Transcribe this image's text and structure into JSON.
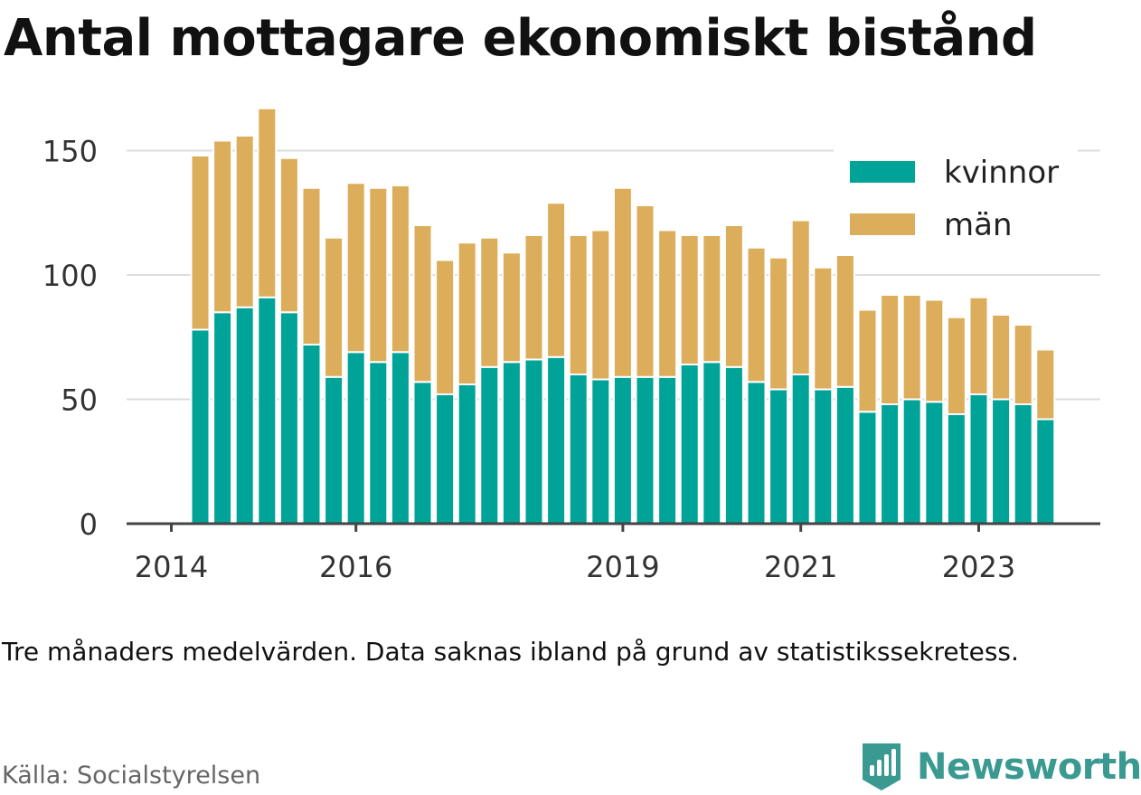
{
  "title": "Antal mottagare ekonomiskt bistånd",
  "note": "Tre månaders medelvärden. Data saknas ibland på grund av statistikssekretess.",
  "source": "Källa: Socialstyrelsen",
  "brand": {
    "name": "Newsworthy",
    "icon": "newsworthy-logo-icon",
    "color": "#3a9a91"
  },
  "colors": {
    "kvinnor": "#00a398",
    "man": "#dcae5c",
    "grid": "#dddddd",
    "axis": "#444444"
  },
  "chart_data": {
    "type": "bar",
    "stacked": true,
    "legend_position": "top-right",
    "grid": true,
    "ylim": [
      0,
      160
    ],
    "yticks": [
      0,
      50,
      100,
      150
    ],
    "xticks": [
      "2014",
      "2016",
      "2019",
      "2021",
      "2023"
    ],
    "series": [
      {
        "name": "kvinnor",
        "color": "#00a398",
        "values": [
          78,
          85,
          87,
          91,
          85,
          72,
          59,
          69,
          65,
          69,
          57,
          52,
          56,
          63,
          65,
          66,
          67,
          60,
          58,
          59,
          59,
          59,
          64,
          65,
          63,
          57,
          54,
          60,
          54,
          55,
          45,
          48,
          50,
          49,
          44,
          52,
          50,
          48,
          42
        ]
      },
      {
        "name": "män",
        "color": "#dcae5c",
        "values": [
          70,
          69,
          69,
          76,
          62,
          63,
          56,
          68,
          70,
          67,
          63,
          54,
          57,
          52,
          44,
          50,
          62,
          56,
          60,
          76,
          69,
          59,
          52,
          51,
          57,
          54,
          53,
          62,
          49,
          53,
          41,
          44,
          42,
          41,
          39,
          39,
          34,
          32,
          28
        ]
      }
    ]
  }
}
